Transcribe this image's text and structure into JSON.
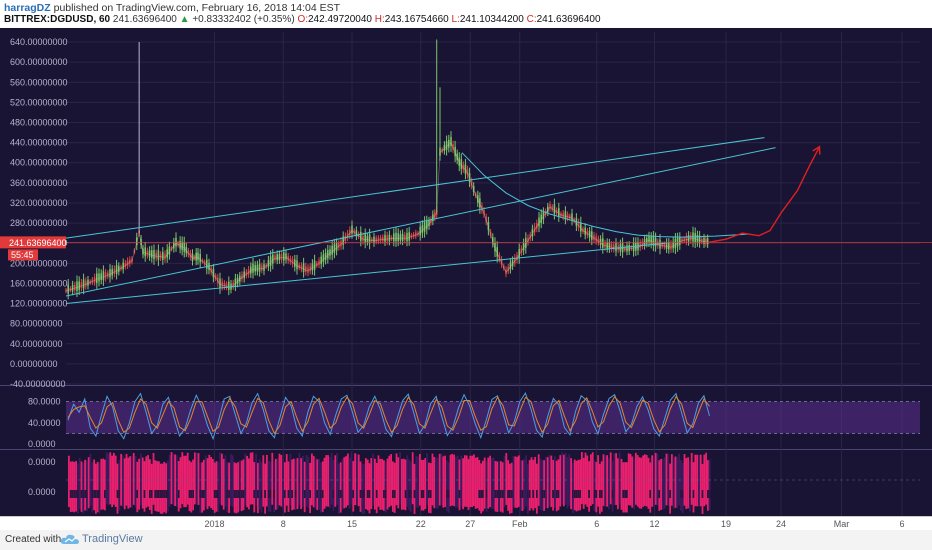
{
  "header": {
    "author": "harragDZ",
    "published_text": " published on TradingView.com, February 16, 2018 14:04 EST",
    "symbol": "BITTREX:DGDUSD, 60",
    "last_price": "241.63696400",
    "change_arrow": "▲",
    "change": "+0.83332402 (+0.35%)",
    "ohlc": [
      {
        "label": "O:",
        "value": "242.49720040"
      },
      {
        "label": "H:",
        "value": "243.16754660"
      },
      {
        "label": "L:",
        "value": "241.10344200"
      },
      {
        "label": "C:",
        "value": "241.63696400"
      }
    ]
  },
  "colors": {
    "background": "#191433",
    "grid": "#2a2446",
    "price_label": "#e23a3a",
    "channel_lines": "#49c5d4",
    "forecast_arrow": "#e02020",
    "candle_up": "#7cc46a",
    "candle_down": "#d94545",
    "band_fill": "#5b2d8f",
    "stoch_k": "#4a9fe0",
    "stoch_d": "#e2862c",
    "bars_pink": "#e8206e",
    "bars_purple": "#3a1c5e"
  },
  "chart_data": [
    {
      "type": "line",
      "title": "BITTREX:DGDUSD, 60",
      "x_ticks": [
        "2018",
        "8",
        "15",
        "22",
        "27",
        "Feb",
        "6",
        "12",
        "19",
        "24",
        "Mar",
        "6"
      ],
      "y_ticks": [
        "640.00000000",
        "600.00000000",
        "560.00000000",
        "520.00000000",
        "480.00000000",
        "440.00000000",
        "400.00000000",
        "360.00000000",
        "320.00000000",
        "280.00000000",
        "240.00000000",
        "200.00000000",
        "160.00000000",
        "120.00000000",
        "80.00000000",
        "40.00000000",
        "0.00000000",
        "-40.00000000"
      ],
      "y_tick_values": [
        640,
        600,
        560,
        520,
        480,
        440,
        400,
        360,
        320,
        280,
        240,
        200,
        160,
        120,
        80,
        40,
        0,
        -40
      ],
      "ylim": [
        -40,
        660
      ],
      "last_price_label": "241.63696400",
      "countdown_label": "55:45",
      "price_series": {
        "t": [
          0,
          2,
          4,
          6,
          8,
          10,
          12,
          13.3,
          14,
          16,
          18,
          20,
          21.5,
          23,
          24,
          26,
          28,
          30,
          32,
          34,
          36,
          38,
          40,
          42,
          44,
          46,
          48,
          50,
          52,
          54,
          56,
          58,
          60,
          62,
          64,
          66,
          67.4,
          68,
          70,
          71.5,
          73,
          74.5,
          76,
          78,
          80,
          82,
          84,
          86,
          88,
          90,
          92,
          94,
          96,
          98,
          100,
          102,
          104,
          106,
          108,
          110,
          112,
          114,
          116,
          117
        ],
        "values": [
          145,
          152,
          160,
          170,
          178,
          190,
          205,
          260,
          222,
          215,
          212,
          240,
          230,
          210,
          212,
          192,
          158,
          152,
          172,
          188,
          190,
          210,
          212,
          195,
          185,
          200,
          220,
          238,
          265,
          248,
          245,
          248,
          250,
          250,
          258,
          278,
          300,
          420,
          440,
          400,
          380,
          335,
          300,
          230,
          182,
          210,
          245,
          280,
          312,
          296,
          290,
          265,
          250,
          235,
          230,
          228,
          232,
          246,
          236,
          232,
          245,
          250,
          243,
          242
        ]
      },
      "spikes": [
        {
          "t": 13.3,
          "high": 640
        },
        {
          "t": 67.4,
          "high": 645
        },
        {
          "t": 68,
          "high": 550
        }
      ],
      "overlays": [
        {
          "kind": "channel_upper",
          "points": [
            [
              0,
              250
            ],
            [
              127,
              450
            ]
          ]
        },
        {
          "kind": "channel_lower",
          "points": [
            [
              0,
              120
            ],
            [
              109,
              240
            ]
          ]
        },
        {
          "kind": "inner_line",
          "points": [
            [
              0,
              135
            ],
            [
              129,
              430
            ]
          ]
        },
        {
          "kind": "decay_curve",
          "points": [
            [
              72,
              420
            ],
            [
              76,
              375
            ],
            [
              80,
              340
            ],
            [
              84,
              315
            ],
            [
              88,
              298
            ],
            [
              92,
              285
            ],
            [
              96,
              273
            ],
            [
              100,
              263
            ],
            [
              104,
              256
            ],
            [
              108,
              253
            ],
            [
              112,
              252
            ],
            [
              118,
              254
            ],
            [
              124,
              258
            ]
          ]
        },
        {
          "kind": "forecast_arrow",
          "points": [
            [
              117,
              242
            ],
            [
              120,
              248
            ],
            [
              123,
              260
            ],
            [
              126,
              255
            ],
            [
              128,
              265
            ],
            [
              130,
              300
            ],
            [
              133,
              345
            ],
            [
              135,
              390
            ],
            [
              137,
              432
            ]
          ]
        }
      ]
    },
    {
      "type": "line",
      "y_ticks": [
        "80.0000",
        "40.0000",
        "0.0000"
      ],
      "y_tick_values": [
        80,
        40,
        0
      ],
      "ylim": [
        0,
        100
      ],
      "band": [
        20,
        80
      ],
      "series": [
        {
          "values": [
            45,
            75,
            60,
            85,
            30,
            15,
            55,
            90,
            70,
            25,
            10,
            40,
            80,
            95,
            60,
            20,
            35,
            75,
            88,
            50,
            15,
            30,
            65,
            92,
            70,
            35,
            10,
            45,
            85,
            90,
            55,
            20,
            40,
            78,
            95,
            65,
            25,
            12,
            50,
            88,
            72,
            30,
            15,
            60,
            90,
            80,
            40,
            18,
            55,
            85,
            92,
            60,
            22,
            35,
            70,
            90,
            65,
            28,
            14,
            48,
            82,
            94,
            58,
            20,
            36,
            76,
            90,
            52,
            16,
            32,
            68,
            93,
            72,
            38,
            12,
            46,
            84,
            91,
            57,
            21,
            42,
            80,
            96,
            66,
            26,
            13,
            52,
            86,
            74,
            31,
            17,
            62,
            91,
            82,
            42,
            19,
            56,
            86,
            93,
            61,
            23,
            37,
            71,
            89,
            64,
            29,
            15,
            49,
            83,
            95,
            59,
            21,
            38,
            77,
            91,
            53
          ]
        },
        {
          "values": [
            50,
            65,
            70,
            72,
            50,
            30,
            40,
            70,
            78,
            45,
            22,
            30,
            60,
            85,
            75,
            40,
            30,
            55,
            80,
            68,
            32,
            25,
            48,
            80,
            80,
            52,
            24,
            32,
            65,
            86,
            70,
            38,
            32,
            60,
            86,
            78,
            44,
            20,
            35,
            70,
            80,
            50,
            24,
            42,
            75,
            86,
            60,
            30,
            40,
            70,
            88,
            76,
            40,
            30,
            55,
            82,
            76,
            45,
            22,
            35,
            66,
            88,
            74,
            38,
            30,
            58,
            84,
            70,
            34,
            26,
            50,
            82,
            82,
            52,
            26,
            33,
            67,
            88,
            72,
            36,
            34,
            62,
            88,
            80,
            46,
            22,
            38,
            72,
            82,
            52,
            25,
            44,
            76,
            87,
            62,
            32,
            42,
            72,
            89,
            77,
            41,
            31,
            56,
            83,
            77,
            46,
            23,
            36,
            67,
            89,
            75,
            39,
            31,
            59,
            85,
            71
          ]
        }
      ]
    },
    {
      "type": "bar",
      "y_ticks": [
        "0.0000",
        "0.0000"
      ]
    }
  ]
}
